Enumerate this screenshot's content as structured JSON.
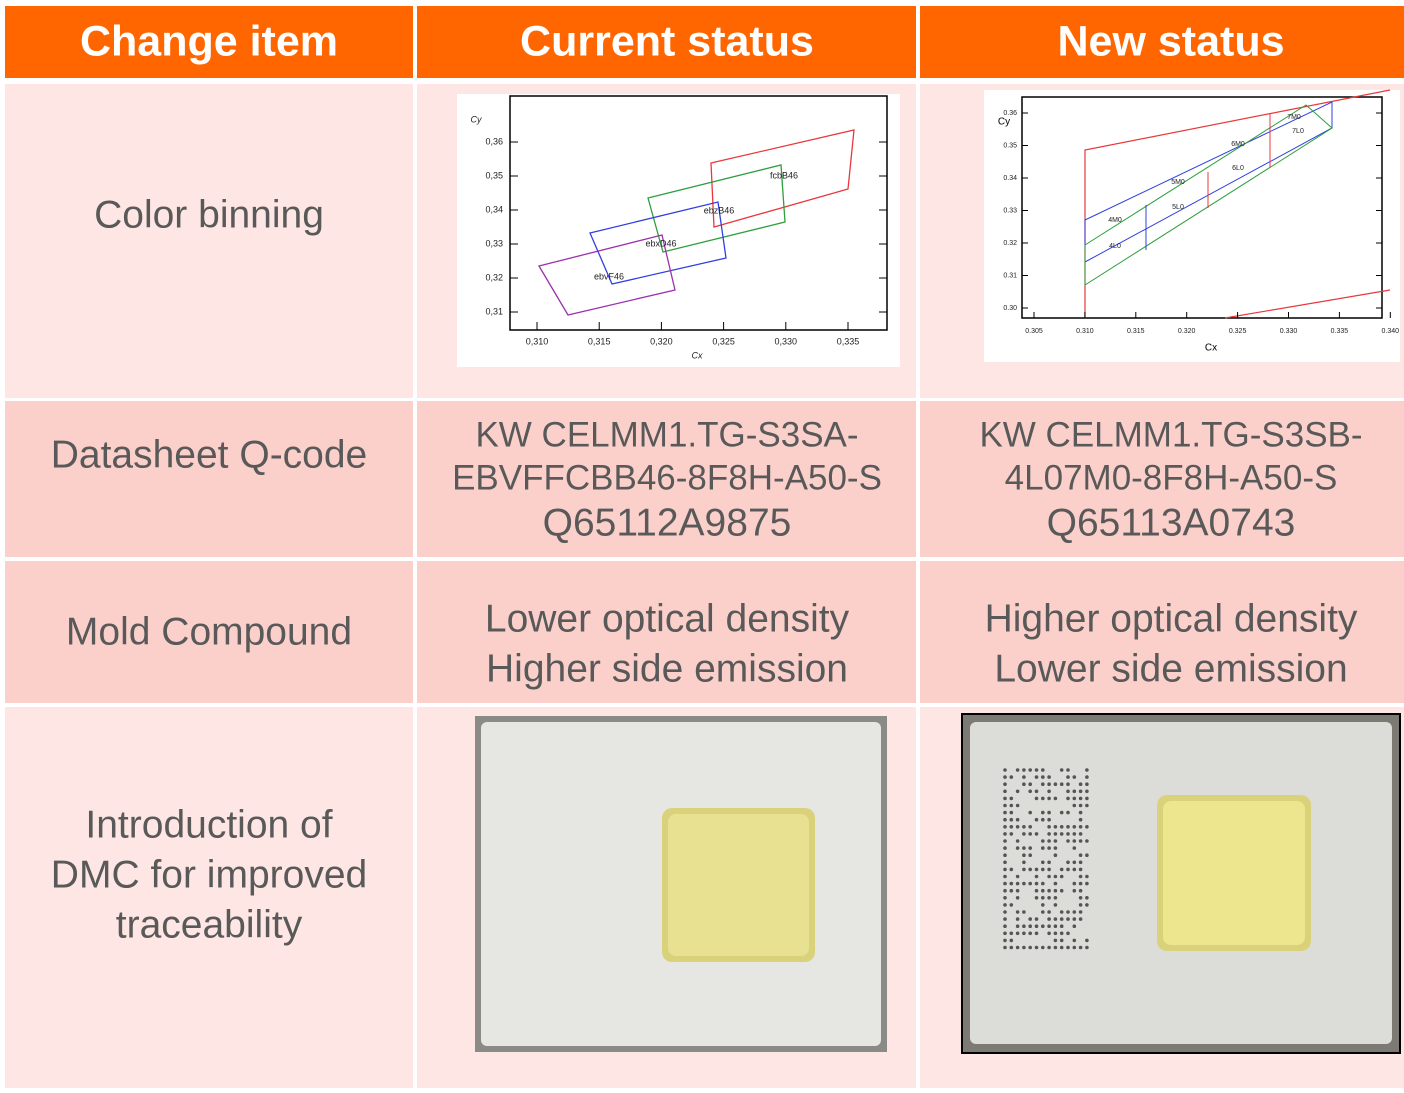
{
  "table": {
    "header": [
      "Change item",
      "Current status",
      "New status"
    ],
    "rows": [
      {
        "item": [
          "Color binning"
        ],
        "current": {
          "x_label": "Cx",
          "y_label": "Cy",
          "xticks": [
            "0,310",
            "0,315",
            "0,320",
            "0,325",
            "0,330",
            "0,335"
          ],
          "yticks": [
            "0,36",
            "0,35",
            "0,34",
            "0,33",
            "0,32",
            "0,31"
          ],
          "bins": [
            "fcbB46",
            "ebzB46",
            "ebxD46",
            "ebvF46"
          ]
        },
        "new": {
          "x_label": "Cx",
          "y_label": "Cy",
          "xticks": [
            "0.305",
            "0.310",
            "0.315",
            "0.320",
            "0.325",
            "0.330",
            "0.335",
            "0.340"
          ],
          "yticks": [
            "0.36",
            "0.35",
            "0.34",
            "0.33",
            "0.32",
            "0.31",
            "0.30"
          ],
          "bins": [
            "4M0",
            "4L0",
            "5M0",
            "5L0",
            "6M0",
            "6L0",
            "7M0",
            "7L0"
          ]
        }
      },
      {
        "item": [
          "Datasheet Q-code"
        ],
        "current": [
          "KW CELMM1.TG-S3SA-",
          "EBVFFCBB46-8F8H-A50-S",
          "Q65112A9875"
        ],
        "new": [
          "KW CELMM1.TG-S3SB-",
          "4L07M0-8F8H-A50-S",
          "Q65113A0743"
        ]
      },
      {
        "item": [
          "Mold Compound"
        ],
        "current": [
          "Lower optical density",
          "Higher side emission"
        ],
        "new": [
          "Higher optical density",
          "Lower side emission"
        ]
      },
      {
        "item": [
          "Introduction of",
          "DMC for improved",
          "traceability"
        ]
      }
    ]
  }
}
